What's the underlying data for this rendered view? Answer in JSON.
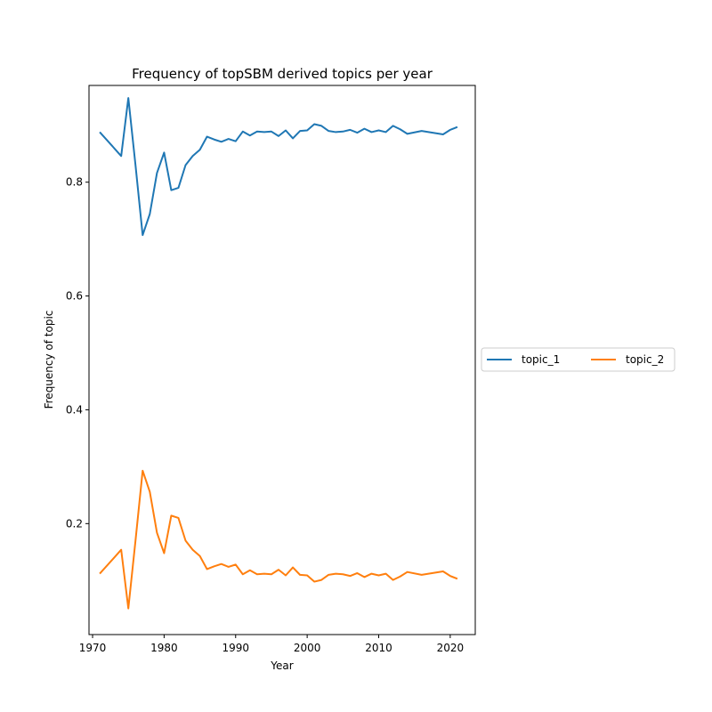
{
  "chart_data": {
    "type": "line",
    "title": "Frequency of topSBM derived topics per year",
    "xlabel": "Year",
    "ylabel": "Frequency of topic",
    "xlim": [
      1969.5,
      2023.5
    ],
    "ylim": [
      0.005,
      0.97
    ],
    "xticks": [
      1970,
      1980,
      1990,
      2000,
      2010,
      2020
    ],
    "yticks": [
      0.2,
      0.4,
      0.6,
      0.8
    ],
    "ytick_labels": [
      "0.2",
      "0.4",
      "0.6",
      "0.8"
    ],
    "grid": false,
    "legend": {
      "placement": "right-outside",
      "columns": 2
    },
    "x": [
      1971,
      1974,
      1975,
      1976,
      1977,
      1978,
      1979,
      1980,
      1981,
      1982,
      1983,
      1984,
      1985,
      1986,
      1987,
      1988,
      1989,
      1990,
      1991,
      1992,
      1993,
      1994,
      1995,
      1996,
      1997,
      1998,
      1999,
      2000,
      2001,
      2002,
      2003,
      2004,
      2005,
      2006,
      2007,
      2008,
      2009,
      2010,
      2011,
      2012,
      2013,
      2014,
      2016,
      2019,
      2020,
      2021
    ],
    "series": [
      {
        "name": "topic_1",
        "color": "#1f77b4",
        "values": [
          0.888,
          0.846,
          0.948,
          0.83,
          0.707,
          0.744,
          0.816,
          0.852,
          0.786,
          0.79,
          0.83,
          0.846,
          0.857,
          0.88,
          0.875,
          0.871,
          0.876,
          0.872,
          0.889,
          0.882,
          0.889,
          0.888,
          0.889,
          0.881,
          0.891,
          0.877,
          0.89,
          0.891,
          0.902,
          0.899,
          0.89,
          0.888,
          0.889,
          0.892,
          0.887,
          0.894,
          0.888,
          0.891,
          0.888,
          0.899,
          0.893,
          0.885,
          0.89,
          0.884,
          0.892,
          0.897
        ]
      },
      {
        "name": "topic_2",
        "color": "#ff7f0e",
        "values": [
          0.112,
          0.154,
          0.051,
          0.17,
          0.293,
          0.256,
          0.184,
          0.148,
          0.214,
          0.21,
          0.17,
          0.154,
          0.143,
          0.12,
          0.125,
          0.129,
          0.124,
          0.128,
          0.111,
          0.118,
          0.111,
          0.112,
          0.111,
          0.119,
          0.109,
          0.123,
          0.11,
          0.109,
          0.098,
          0.101,
          0.11,
          0.112,
          0.111,
          0.108,
          0.113,
          0.106,
          0.112,
          0.109,
          0.112,
          0.101,
          0.107,
          0.115,
          0.11,
          0.116,
          0.108,
          0.103
        ]
      }
    ]
  }
}
